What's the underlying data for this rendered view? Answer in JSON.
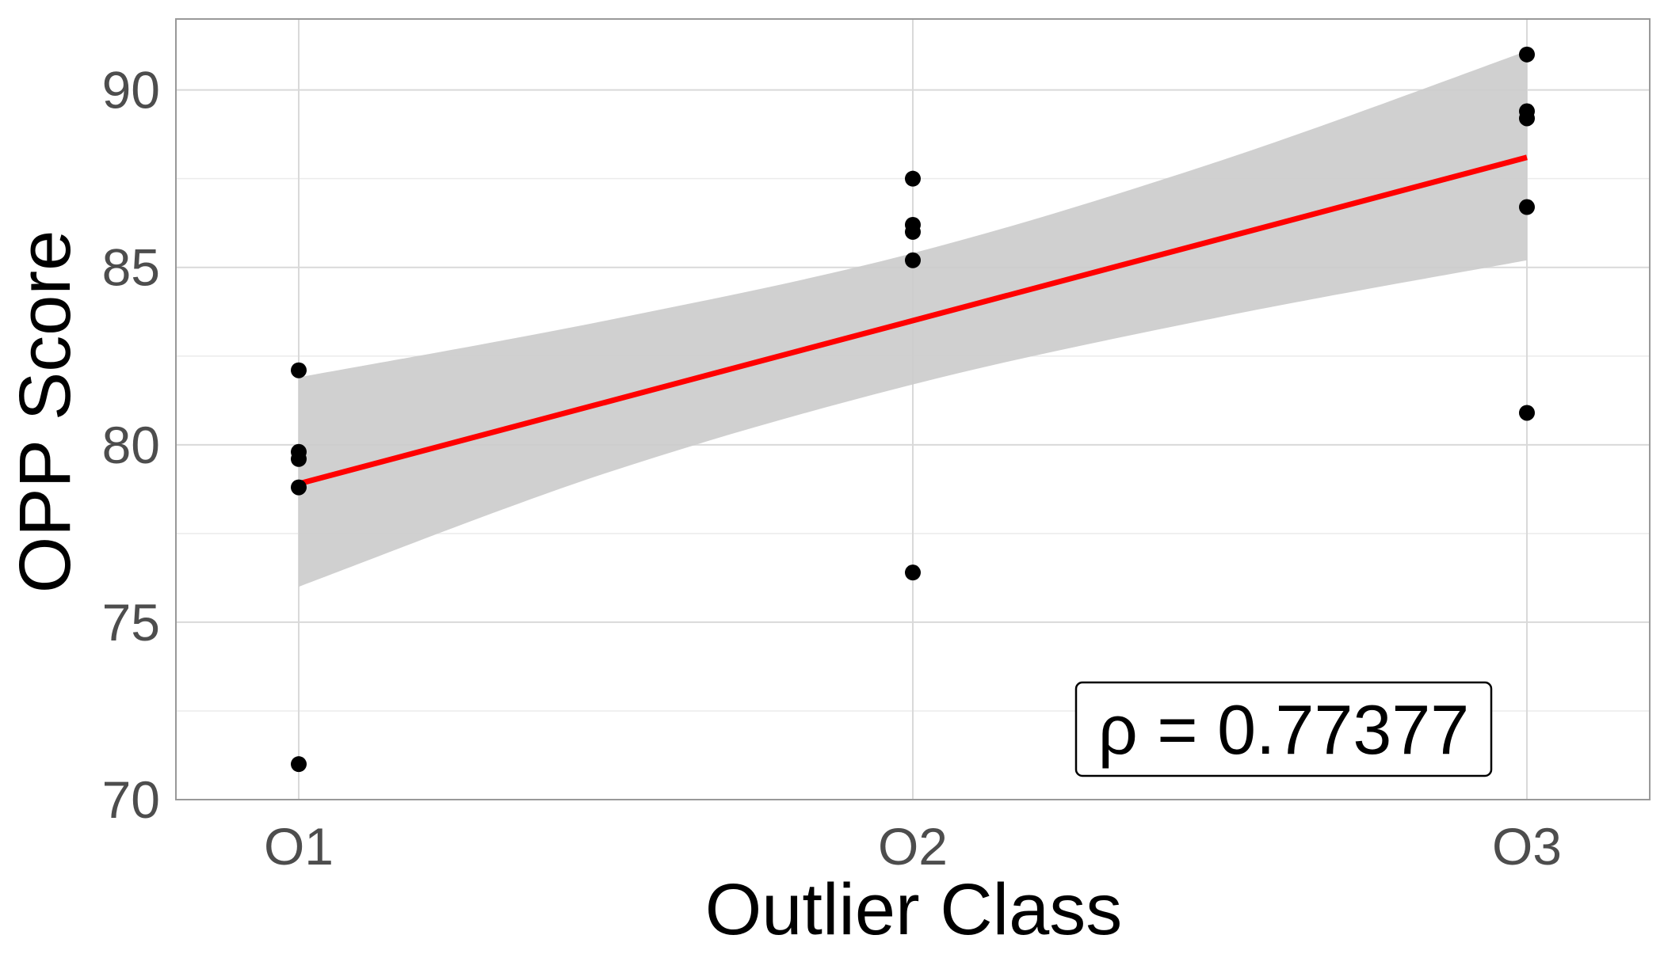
{
  "chart_data": {
    "type": "scatter",
    "title": "",
    "xlabel": "Outlier Class",
    "ylabel": "OPP Score",
    "categories": [
      "O1",
      "O2",
      "O3"
    ],
    "xlim": [
      0.8,
      3.2
    ],
    "ylim": [
      70,
      92
    ],
    "y_ticks": [
      70,
      75,
      80,
      85,
      90
    ],
    "y_minor_ticks": [
      72.5,
      77.5,
      82.5,
      87.5
    ],
    "grid": true,
    "legend": "none",
    "points": [
      {
        "x": 1,
        "y": 82.1
      },
      {
        "x": 1,
        "y": 79.8
      },
      {
        "x": 1,
        "y": 79.6
      },
      {
        "x": 1,
        "y": 78.8
      },
      {
        "x": 1,
        "y": 71.0
      },
      {
        "x": 2,
        "y": 87.5
      },
      {
        "x": 2,
        "y": 86.2
      },
      {
        "x": 2,
        "y": 86.0
      },
      {
        "x": 2,
        "y": 85.2
      },
      {
        "x": 2,
        "y": 76.4
      },
      {
        "x": 3,
        "y": 91.0
      },
      {
        "x": 3,
        "y": 89.4
      },
      {
        "x": 3,
        "y": 89.2
      },
      {
        "x": 3,
        "y": 86.7
      },
      {
        "x": 3,
        "y": 80.9
      }
    ],
    "fit": {
      "type": "linear",
      "intercept": 74.3,
      "slope": 4.6
    },
    "confidence_band": {
      "x": [
        1.0,
        1.5,
        2.0,
        2.5,
        3.0
      ],
      "lower": [
        76.0,
        79.2,
        81.7,
        83.6,
        85.2
      ],
      "upper": [
        81.9,
        83.5,
        85.4,
        88.0,
        91.1
      ]
    },
    "annotation": {
      "text": "ρ = 0.77377",
      "placement": "bottom-right"
    },
    "colors": {
      "points": "#000000",
      "fit_line": "#ff0000",
      "band": "#cccccc",
      "grid": "#d9d9d9",
      "panel_border": "#999999"
    }
  }
}
